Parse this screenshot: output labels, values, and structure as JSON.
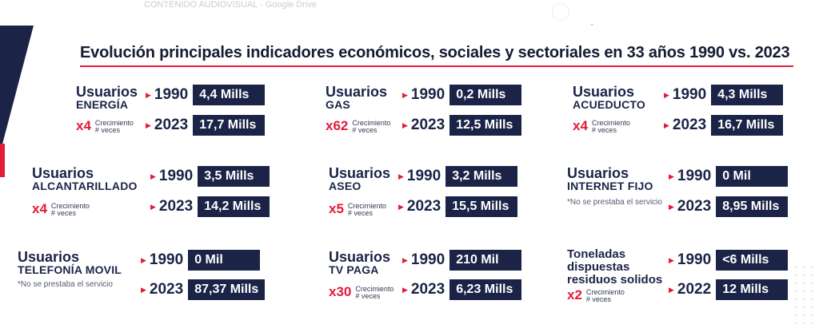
{
  "header": {
    "tab_title": "CONTENIDO AUDIOVISUAL - Google Drive"
  },
  "title": "Evolución principales indicadores económicos, sociales y sectoriales en 33 años 1990 vs. 2023",
  "cards": [
    {
      "name_main": "Usuarios",
      "name_sub": "ENERGÍA",
      "multiplier": "x4",
      "growth_label_1": "Crecimiento",
      "growth_label_2": "# veces",
      "note": "",
      "rows": [
        {
          "year": "1990",
          "value": "4,4 Mills"
        },
        {
          "year": "2023",
          "value": "17,7 Mills"
        }
      ]
    },
    {
      "name_main": "Usuarios",
      "name_sub": "GAS",
      "multiplier": "x62",
      "growth_label_1": "Crecimiento",
      "growth_label_2": "# veces",
      "note": "",
      "rows": [
        {
          "year": "1990",
          "value": "0,2 Mills"
        },
        {
          "year": "2023",
          "value": "12,5 Mills"
        }
      ]
    },
    {
      "name_main": "Usuarios",
      "name_sub": "ACUEDUCTO",
      "multiplier": "x4",
      "growth_label_1": "Crecimiento",
      "growth_label_2": "# veces",
      "note": "",
      "rows": [
        {
          "year": "1990",
          "value": "4,3 Mills"
        },
        {
          "year": "2023",
          "value": "16,7 Mills"
        }
      ]
    },
    {
      "name_main": "Usuarios",
      "name_sub": "ALCANTARILLADO",
      "multiplier": "x4",
      "growth_label_1": "Crecimiento",
      "growth_label_2": "# veces",
      "note": "",
      "rows": [
        {
          "year": "1990",
          "value": "3,5 Mills"
        },
        {
          "year": "2023",
          "value": "14,2 Mills"
        }
      ]
    },
    {
      "name_main": "Usuarios",
      "name_sub": "ASEO",
      "multiplier": "x5",
      "growth_label_1": "Crecimiento",
      "growth_label_2": "# veces",
      "note": "",
      "rows": [
        {
          "year": "1990",
          "value": "3,2 Mills"
        },
        {
          "year": "2023",
          "value": "15,5 Mills"
        }
      ]
    },
    {
      "name_main": "Usuarios",
      "name_sub": "INTERNET FIJO",
      "multiplier": "",
      "growth_label_1": "",
      "growth_label_2": "",
      "note": "*No se prestaba el servicio",
      "rows": [
        {
          "year": "1990",
          "value": "0 Mil"
        },
        {
          "year": "2023",
          "value": "8,95 Mills"
        }
      ]
    },
    {
      "name_main": "Usuarios",
      "name_sub": "TELEFONÍA MOVIL",
      "multiplier": "",
      "growth_label_1": "",
      "growth_label_2": "",
      "note": "*No se prestaba el servicio",
      "rows": [
        {
          "year": "1990",
          "value": "0 Mil"
        },
        {
          "year": "2023",
          "value": "87,37 Mills"
        }
      ]
    },
    {
      "name_main": "Usuarios",
      "name_sub": "TV PAGA",
      "multiplier": "x30",
      "growth_label_1": "Crecimiento",
      "growth_label_2": "# veces",
      "note": "",
      "rows": [
        {
          "year": "1990",
          "value": "210 Mil"
        },
        {
          "year": "2023",
          "value": "6,23 Mills"
        }
      ]
    },
    {
      "name_main": "Toneladas",
      "name_line2": "dispuestas",
      "name_line3": "residuos solidos",
      "multiplier": "x2",
      "growth_label_1": "Crecimiento",
      "growth_label_2": "# veces",
      "note": "",
      "rows": [
        {
          "year": "1990",
          "value": "<6 Mills"
        },
        {
          "year": "2022",
          "value": "12 Mills"
        }
      ]
    }
  ],
  "colors": {
    "navy": "#1b2447",
    "accent_red": "#e31b3a"
  }
}
